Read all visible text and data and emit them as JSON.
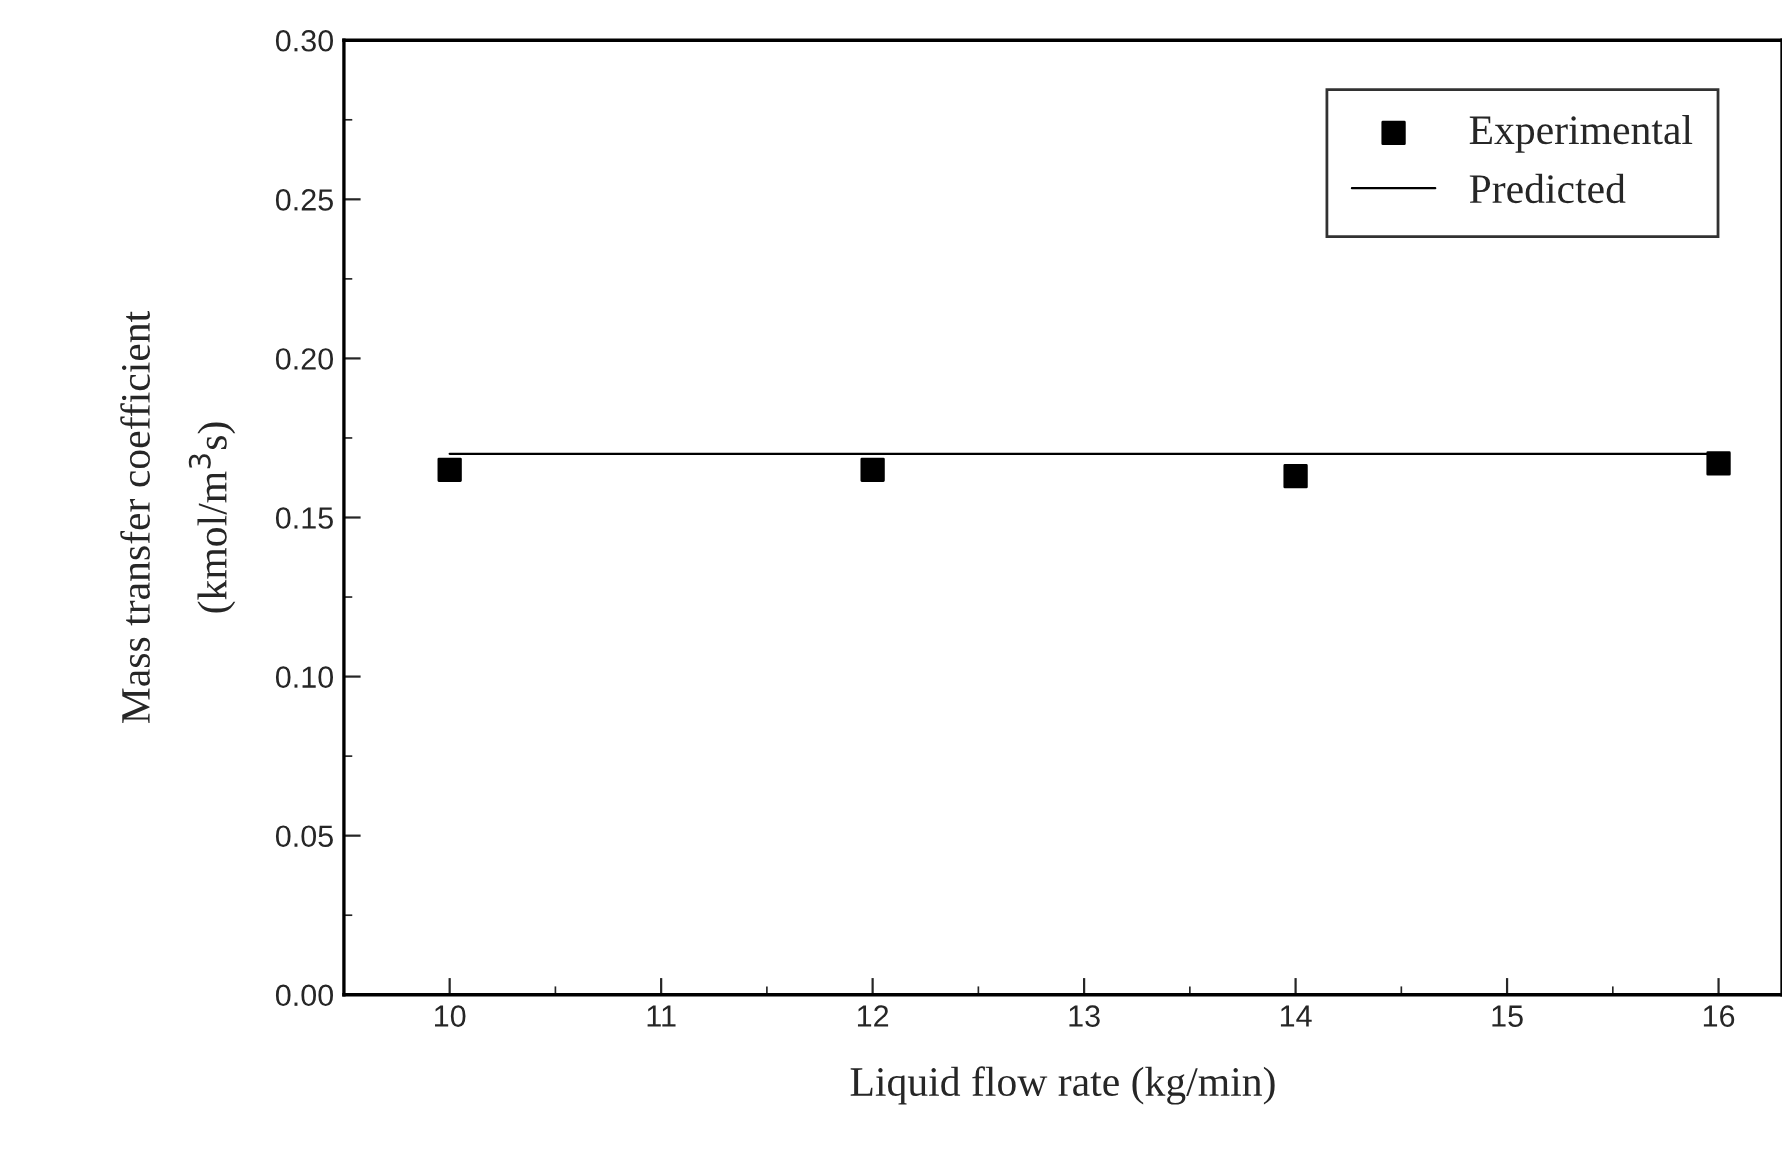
{
  "chart_data": {
    "type": "scatter",
    "xlabel": "Liquid flow rate (kg/min)",
    "ylabel": "Mass transfer coefficient\n(kmol/m$^{3}$s)",
    "series": [
      {
        "name": "Experimental",
        "color": "#000000",
        "marker": "square",
        "x": [
          10,
          12,
          14,
          16
        ],
        "values": [
          0.165,
          0.165,
          0.163,
          0.167
        ]
      },
      {
        "name": "Predicted",
        "type": "line",
        "color": "#000000",
        "marker": "none",
        "line_style": "solid",
        "x": [
          10,
          16
        ],
        "values": [
          0.17,
          0.17
        ]
      }
    ],
    "xlim": [
      9.5,
      16.3
    ],
    "xticks": [
      10,
      11,
      12,
      13,
      14,
      15,
      16
    ],
    "ylim": [
      0,
      0.3
    ],
    "yticks": [
      {
        "value": 0,
        "label": "0.00"
      },
      {
        "value": 0.05,
        "label": "0.05"
      },
      {
        "value": 0.1,
        "label": "0.10"
      },
      {
        "value": 0.15,
        "label": "0.15"
      },
      {
        "value": 0.2,
        "label": "0.20"
      },
      {
        "value": 0.25,
        "label": "0.25"
      },
      {
        "value": 0.3,
        "label": "0.30"
      }
    ],
    "grid": false,
    "legend": "top right"
  }
}
